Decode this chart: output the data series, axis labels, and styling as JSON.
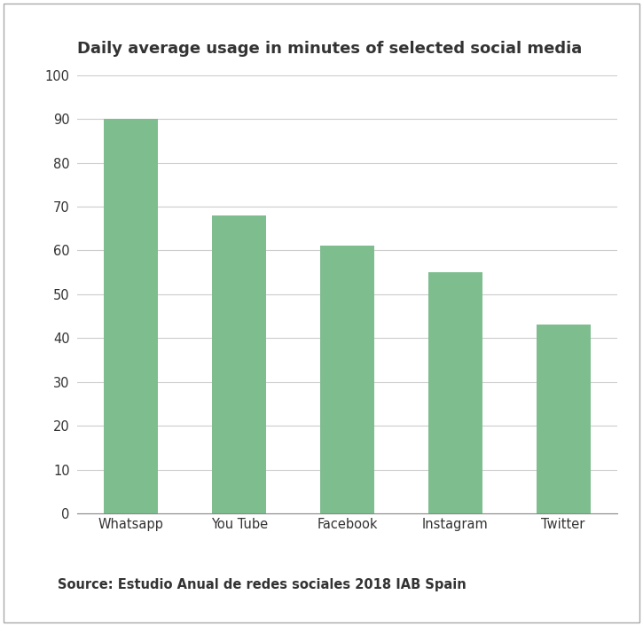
{
  "title": "Daily average usage in minutes of selected social media",
  "categories": [
    "Whatsapp",
    "You Tube",
    "Facebook",
    "Instagram",
    "Twitter"
  ],
  "values": [
    90,
    68,
    61,
    55,
    43
  ],
  "bar_color": "#7DBD8E",
  "ylim": [
    0,
    100
  ],
  "yticks": [
    0,
    10,
    20,
    30,
    40,
    50,
    60,
    70,
    80,
    90,
    100
  ],
  "source_text": "Source: Estudio Anual de redes sociales 2018 IAB Spain",
  "background_color": "#ffffff",
  "title_fontsize": 13,
  "tick_fontsize": 10.5,
  "source_fontsize": 10.5,
  "bar_width": 0.5,
  "title_color": "#333333",
  "tick_color": "#333333",
  "grid_color": "#cccccc",
  "border_color": "#aaaaaa"
}
